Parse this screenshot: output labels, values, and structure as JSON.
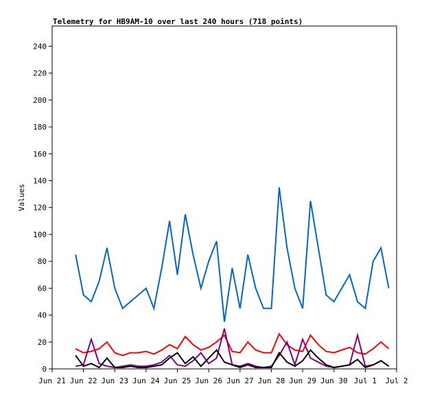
{
  "chart_data": {
    "type": "line",
    "title": "Telemetry for HB9AM-10 over last 240 hours (718 points)",
    "y_label": "Values",
    "xlim": [
      0,
      11
    ],
    "xticks": [
      {
        "value": 0,
        "label": "Jun 21"
      },
      {
        "value": 1,
        "label": "Jun 22"
      },
      {
        "value": 2,
        "label": "Jun 23"
      },
      {
        "value": 3,
        "label": "Jun 24"
      },
      {
        "value": 4,
        "label": "Jun 25"
      },
      {
        "value": 5,
        "label": "Jun 26"
      },
      {
        "value": 6,
        "label": "Jun 27"
      },
      {
        "value": 7,
        "label": "Jun 28"
      },
      {
        "value": 8,
        "label": "Jun 29"
      },
      {
        "value": 9,
        "label": "Jun 30"
      },
      {
        "value": 10,
        "label": "Jul 1"
      },
      {
        "value": 11,
        "label": "Jul 2"
      }
    ],
    "ylim": [
      0,
      255
    ],
    "yticks": [
      0,
      20,
      40,
      60,
      80,
      100,
      120,
      140,
      160,
      180,
      200,
      220,
      240
    ],
    "x": [
      0.75,
      1.0,
      1.25,
      1.5,
      1.75,
      2.0,
      2.25,
      2.5,
      2.75,
      3.0,
      3.25,
      3.5,
      3.75,
      4.0,
      4.25,
      4.5,
      4.75,
      5.0,
      5.25,
      5.5,
      5.75,
      6.0,
      6.25,
      6.5,
      6.75,
      7.0,
      7.25,
      7.5,
      7.75,
      8.0,
      8.25,
      8.5,
      8.75,
      9.0,
      9.25,
      9.5,
      9.75,
      10.0,
      10.25,
      10.5,
      10.75
    ],
    "series": [
      {
        "color": "#0066cc",
        "values": [
          85,
          55,
          50,
          65,
          90,
          60,
          45,
          50,
          55,
          60,
          45,
          75,
          110,
          70,
          115,
          85,
          60,
          80,
          95,
          35,
          75,
          45,
          85,
          60,
          45,
          45,
          135,
          90,
          60,
          45,
          125,
          90,
          55,
          50,
          60,
          70,
          50,
          45,
          80,
          90,
          60
        ]
      },
      {
        "color": "#ff0000",
        "values": [
          15,
          12,
          13,
          15,
          20,
          12,
          10,
          12,
          12,
          13,
          11,
          14,
          18,
          15,
          24,
          18,
          14,
          16,
          20,
          25,
          13,
          12,
          20,
          14,
          12,
          12,
          26,
          18,
          14,
          13,
          25,
          18,
          13,
          12,
          14,
          16,
          12,
          11,
          15,
          20,
          15
        ]
      },
      {
        "color": "#800080",
        "values": [
          2,
          3,
          22,
          4,
          2,
          1,
          2,
          3,
          2,
          2,
          3,
          5,
          10,
          3,
          2,
          6,
          12,
          4,
          8,
          30,
          3,
          2,
          4,
          2,
          1,
          2,
          10,
          20,
          3,
          22,
          8,
          5,
          2,
          1,
          2,
          3,
          25,
          2,
          3,
          6,
          2
        ]
      },
      {
        "color": "#000000",
        "values": [
          10,
          2,
          4,
          1,
          8,
          1,
          1,
          2,
          1,
          1,
          2,
          3,
          8,
          12,
          4,
          9,
          2,
          8,
          14,
          5,
          3,
          1,
          3,
          1,
          1,
          1,
          12,
          5,
          2,
          6,
          14,
          8,
          3,
          1,
          2,
          3,
          7,
          1,
          3,
          6,
          2
        ]
      }
    ]
  }
}
